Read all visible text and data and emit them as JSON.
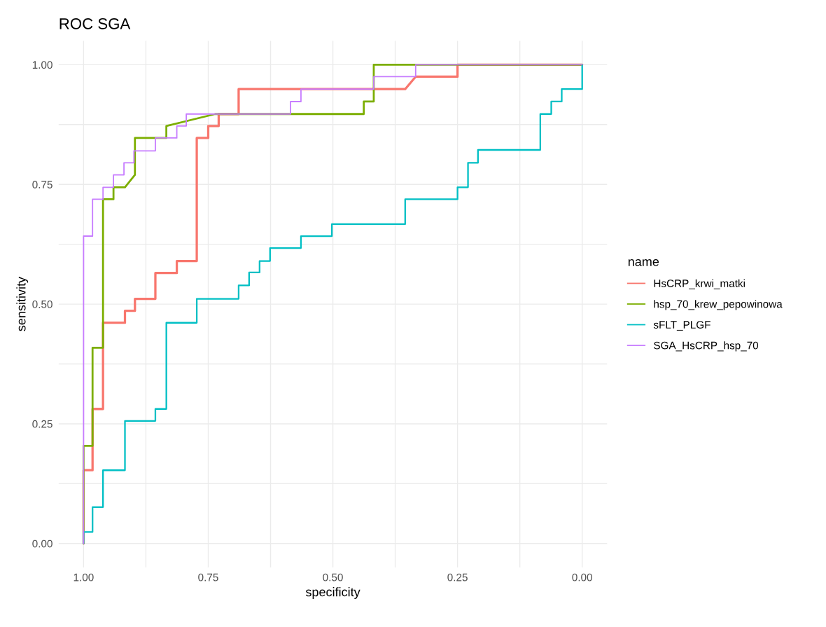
{
  "chart_data": {
    "type": "line",
    "title": "ROC SGA",
    "xlabel": "specificity",
    "ylabel": "sensitivity",
    "legend_title": "name",
    "legend": "right",
    "grid": true,
    "line_style": "solid",
    "xlim": [
      1.05,
      -0.05
    ],
    "ylim": [
      -0.05,
      1.05
    ],
    "xticks": [
      {
        "value": 1.0,
        "label": "1.00"
      },
      {
        "value": 0.875,
        "label": null
      },
      {
        "value": 0.75,
        "label": "0.75"
      },
      {
        "value": 0.625,
        "label": null
      },
      {
        "value": 0.5,
        "label": "0.50"
      },
      {
        "value": 0.375,
        "label": null
      },
      {
        "value": 0.25,
        "label": "0.25"
      },
      {
        "value": 0.125,
        "label": null
      },
      {
        "value": 0.0,
        "label": "0.00"
      }
    ],
    "yticks": [
      {
        "value": 0.0,
        "label": "0.00"
      },
      {
        "value": 0.125,
        "label": null
      },
      {
        "value": 0.25,
        "label": "0.25"
      },
      {
        "value": 0.375,
        "label": null
      },
      {
        "value": 0.5,
        "label": "0.50"
      },
      {
        "value": 0.625,
        "label": null
      },
      {
        "value": 0.75,
        "label": "0.75"
      },
      {
        "value": 0.875,
        "label": null
      },
      {
        "value": 1.0,
        "label": "1.00"
      }
    ],
    "series": [
      {
        "name": "HsCRP_krwi_matki",
        "color": "#f8766d",
        "x": [
          1,
          1,
          0.982,
          0.982,
          0.961,
          0.961,
          0.917,
          0.917,
          0.897,
          0.897,
          0.856,
          0.856,
          0.813,
          0.813,
          0.773,
          0.773,
          0.75,
          0.75,
          0.729,
          0.729,
          0.689,
          0.689,
          0.355,
          0.334,
          0.25,
          0.25,
          0
        ],
        "values": [
          0,
          0.153,
          0.153,
          0.281,
          0.281,
          0.461,
          0.461,
          0.486,
          0.486,
          0.511,
          0.511,
          0.565,
          0.565,
          0.59,
          0.59,
          0.847,
          0.847,
          0.872,
          0.872,
          0.897,
          0.897,
          0.949,
          0.949,
          0.975,
          0.975,
          1,
          1
        ]
      },
      {
        "name": "hsp_70_krew_pepowinowa",
        "color": "#7cae00",
        "x": [
          1,
          1,
          0.982,
          0.982,
          0.961,
          0.961,
          0.94,
          0.94,
          0.917,
          0.897,
          0.897,
          0.834,
          0.834,
          0.736,
          0.438,
          0.438,
          0.418,
          0.418,
          0
        ],
        "values": [
          0,
          0.204,
          0.204,
          0.409,
          0.409,
          0.719,
          0.719,
          0.744,
          0.744,
          0.77,
          0.847,
          0.847,
          0.872,
          0.897,
          0.897,
          0.923,
          0.923,
          1,
          1
        ]
      },
      {
        "name": "sFLT_PLGF",
        "color": "#00bfc4",
        "x": [
          1,
          1,
          0.982,
          0.982,
          0.961,
          0.961,
          0.917,
          0.917,
          0.856,
          0.856,
          0.834,
          0.834,
          0.773,
          0.773,
          0.689,
          0.689,
          0.668,
          0.668,
          0.647,
          0.647,
          0.626,
          0.626,
          0.564,
          0.564,
          0.502,
          0.502,
          0.355,
          0.355,
          0.25,
          0.25,
          0.229,
          0.229,
          0.209,
          0.209,
          0.084,
          0.084,
          0.062,
          0.062,
          0.041,
          0.041,
          0,
          0
        ],
        "values": [
          0,
          0.024,
          0.024,
          0.076,
          0.076,
          0.153,
          0.153,
          0.256,
          0.256,
          0.281,
          0.281,
          0.461,
          0.461,
          0.511,
          0.511,
          0.539,
          0.539,
          0.566,
          0.566,
          0.59,
          0.59,
          0.617,
          0.617,
          0.642,
          0.642,
          0.667,
          0.667,
          0.719,
          0.719,
          0.744,
          0.744,
          0.795,
          0.795,
          0.822,
          0.822,
          0.897,
          0.897,
          0.923,
          0.923,
          0.949,
          0.949,
          1
        ]
      },
      {
        "name": "SGA_HsCRP_hsp_70",
        "color": "#c77cff",
        "x": [
          1,
          1,
          0.982,
          0.982,
          0.961,
          0.961,
          0.94,
          0.94,
          0.919,
          0.919,
          0.899,
          0.899,
          0.856,
          0.856,
          0.813,
          0.813,
          0.794,
          0.794,
          0.585,
          0.585,
          0.564,
          0.564,
          0.418,
          0.418,
          0.334,
          0.334,
          0
        ],
        "values": [
          0,
          0.642,
          0.642,
          0.719,
          0.719,
          0.744,
          0.744,
          0.77,
          0.77,
          0.795,
          0.795,
          0.82,
          0.82,
          0.847,
          0.847,
          0.872,
          0.872,
          0.897,
          0.897,
          0.923,
          0.923,
          0.949,
          0.949,
          0.975,
          0.975,
          1,
          1
        ]
      }
    ]
  }
}
